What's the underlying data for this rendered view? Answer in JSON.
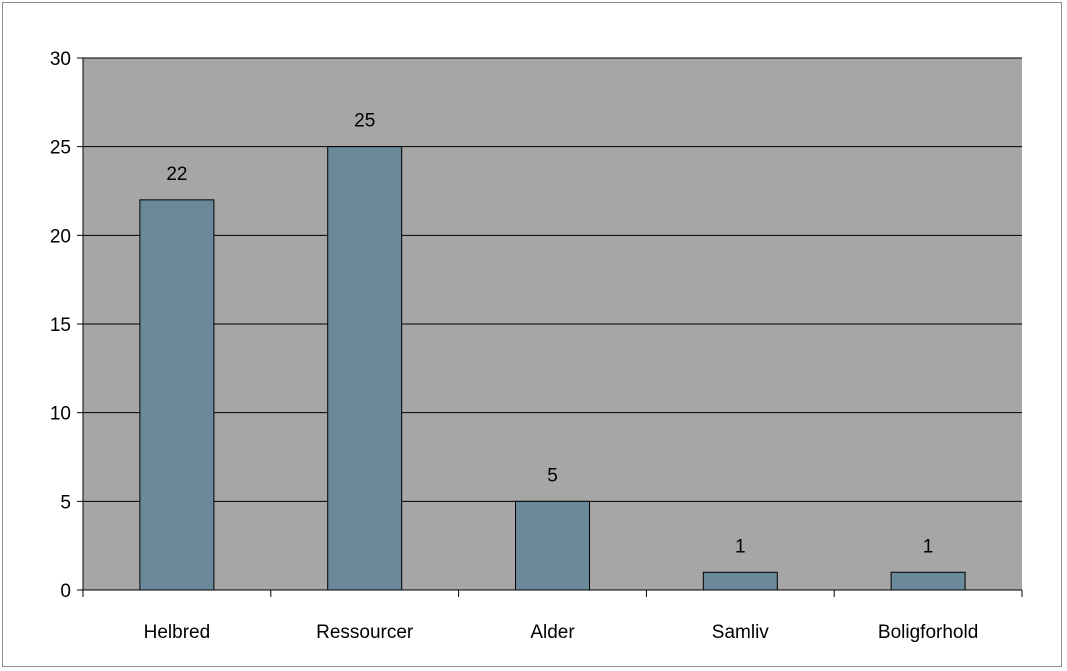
{
  "chart_data": {
    "type": "bar",
    "title": "",
    "xlabel": "",
    "ylabel": "",
    "categories": [
      "Helbred",
      "Ressourcer",
      "Alder",
      "Samliv",
      "Boligforhold"
    ],
    "values": [
      22,
      25,
      5,
      1,
      1
    ],
    "data_labels": [
      "22",
      "25",
      "5",
      "1",
      "1"
    ],
    "ylim": [
      0,
      30
    ],
    "yticks": [
      0,
      5,
      10,
      15,
      20,
      25,
      30
    ],
    "ytick_labels": [
      "0",
      "5",
      "10",
      "15",
      "20",
      "25",
      "30"
    ],
    "grid": true,
    "legend": "none",
    "colors": {
      "bar_fill": "#6a8a9c",
      "plot_background": "#a6a6a6",
      "gridline": "#000000",
      "bar_stroke": "#000000"
    }
  }
}
